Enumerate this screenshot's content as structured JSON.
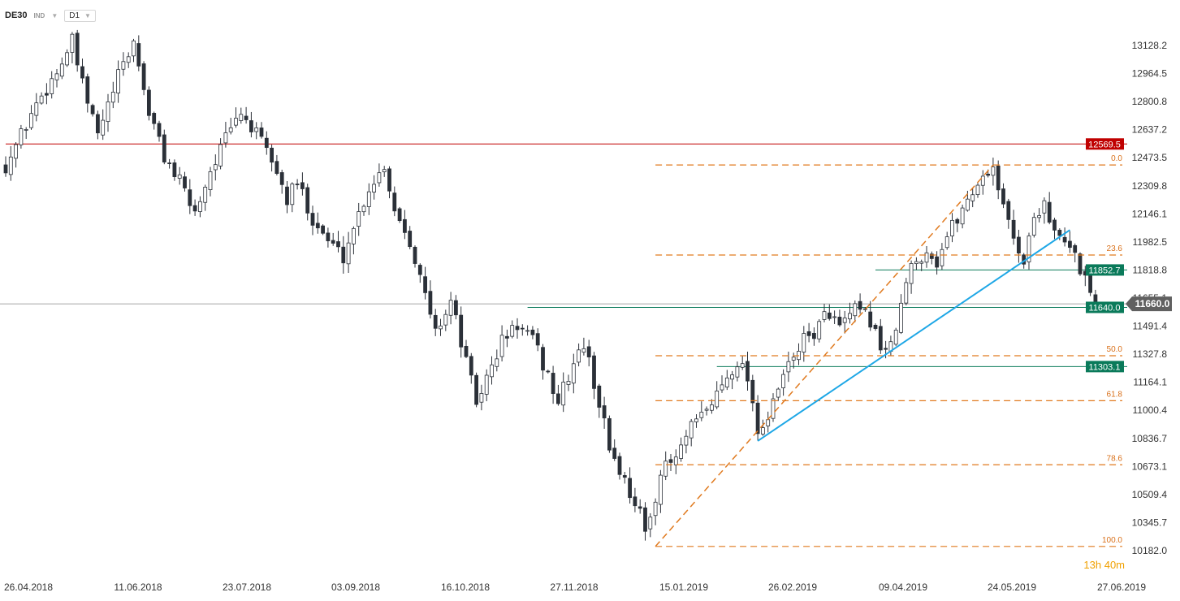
{
  "toolbar": {
    "symbol": "DE30",
    "tag": "IND",
    "timeframe": "D1"
  },
  "chart_data": {
    "type": "candlestick",
    "symbol": "DE30",
    "timeframe": "D1",
    "ylim": [
      10182.0,
      13250.0
    ],
    "y_ticks": [
      "13128.2",
      "12964.5",
      "12800.8",
      "12637.2",
      "12473.5",
      "12309.8",
      "12146.1",
      "11982.5",
      "11818.8",
      "11655.1",
      "11491.4",
      "11327.8",
      "11164.1",
      "11000.4",
      "10836.7",
      "10673.1",
      "10509.4",
      "10345.7",
      "10182.0"
    ],
    "x_ticks": [
      "26.04.2018",
      "11.06.2018",
      "23.07.2018",
      "03.09.2018",
      "16.10.2018",
      "27.11.2018",
      "15.01.2019",
      "26.02.2019",
      "09.04.2019",
      "24.05.2019",
      "27.06.2019"
    ],
    "path_points": [
      [
        0,
        12450
      ],
      [
        3,
        12620
      ],
      [
        6,
        12800
      ],
      [
        10,
        12980
      ],
      [
        13,
        13150
      ],
      [
        15,
        12900
      ],
      [
        18,
        12620
      ],
      [
        22,
        12950
      ],
      [
        25,
        13150
      ],
      [
        28,
        12750
      ],
      [
        31,
        12500
      ],
      [
        34,
        12350
      ],
      [
        37,
        12180
      ],
      [
        40,
        12420
      ],
      [
        43,
        12600
      ],
      [
        46,
        12750
      ],
      [
        49,
        12620
      ],
      [
        52,
        12480
      ],
      [
        55,
        12250
      ],
      [
        57,
        12350
      ],
      [
        60,
        12150
      ],
      [
        63,
        12020
      ],
      [
        66,
        11930
      ],
      [
        68,
        12100
      ],
      [
        71,
        12320
      ],
      [
        74,
        12450
      ],
      [
        76,
        12200
      ],
      [
        79,
        12030
      ],
      [
        82,
        11700
      ],
      [
        84,
        11500
      ],
      [
        87,
        11680
      ],
      [
        90,
        11330
      ],
      [
        92,
        11100
      ],
      [
        95,
        11300
      ],
      [
        97,
        11450
      ],
      [
        100,
        11540
      ],
      [
        103,
        11450
      ],
      [
        106,
        11250
      ],
      [
        108,
        11100
      ],
      [
        111,
        11320
      ],
      [
        113,
        11430
      ],
      [
        116,
        11100
      ],
      [
        118,
        10850
      ],
      [
        121,
        10650
      ],
      [
        124,
        10480
      ],
      [
        125,
        10330
      ],
      [
        128,
        10700
      ],
      [
        131,
        10780
      ],
      [
        134,
        10950
      ],
      [
        137,
        11050
      ],
      [
        140,
        11200
      ],
      [
        143,
        11340
      ],
      [
        145,
        11250
      ],
      [
        147,
        10950
      ],
      [
        149,
        11000
      ],
      [
        152,
        11250
      ],
      [
        155,
        11420
      ],
      [
        158,
        11500
      ],
      [
        161,
        11620
      ],
      [
        163,
        11520
      ],
      [
        166,
        11620
      ],
      [
        169,
        11570
      ],
      [
        171,
        11420
      ],
      [
        173,
        11400
      ],
      [
        175,
        11650
      ],
      [
        177,
        11870
      ],
      [
        180,
        11970
      ],
      [
        182,
        11900
      ],
      [
        184,
        12050
      ],
      [
        187,
        12200
      ],
      [
        190,
        12350
      ],
      [
        193,
        12450
      ],
      [
        195,
        12200
      ],
      [
        197,
        12050
      ],
      [
        199,
        11900
      ],
      [
        201,
        12150
      ],
      [
        203,
        12250
      ],
      [
        205,
        12050
      ],
      [
        207,
        12000
      ],
      [
        209,
        11930
      ],
      [
        211,
        11800
      ],
      [
        213,
        11665
      ]
    ],
    "candle_count": 214,
    "horizontal_levels": [
      {
        "price": 12569.5,
        "label": "12569.5",
        "color": "#c00000",
        "start_index": 0
      },
      {
        "price": 11852.7,
        "label": "11852.7",
        "color": "#0a7a5a",
        "start_index": 170
      },
      {
        "price": 11640.0,
        "label": "11640.0",
        "color": "#0a7a5a",
        "start_index": 102
      },
      {
        "price": 11303.1,
        "label": "11303.1",
        "color": "#0a7a5a",
        "start_index": 139
      }
    ],
    "current_price": {
      "price": 11660.0,
      "label": "11660.0",
      "color": "#606060"
    },
    "fibonacci": {
      "color": "#e07a1f",
      "start_index": 127,
      "low": 10280.0,
      "high": 12450.0,
      "levels": [
        {
          "ratio": 0.0,
          "label": "0.0"
        },
        {
          "ratio": 0.236,
          "label": "23.6"
        },
        {
          "ratio": 0.5,
          "label": "50.0"
        },
        {
          "ratio": 0.618,
          "label": "61.8"
        },
        {
          "ratio": 0.786,
          "label": "78.6"
        },
        {
          "ratio": 1.0,
          "label": "100.0"
        }
      ],
      "diagonal": {
        "from": {
          "index": 127,
          "price": 10280.0
        },
        "to": {
          "index": 193,
          "price": 12450.0
        }
      }
    },
    "trendline": {
      "color": "#1ea7e6",
      "from": {
        "index": 147,
        "price": 10880.0
      },
      "to": {
        "index": 208,
        "price": 12080.0
      }
    },
    "countdown": "13h 40m",
    "colors": {
      "bull": "#ffffff",
      "bear": "#2b3038",
      "wick": "#2b3038"
    }
  }
}
